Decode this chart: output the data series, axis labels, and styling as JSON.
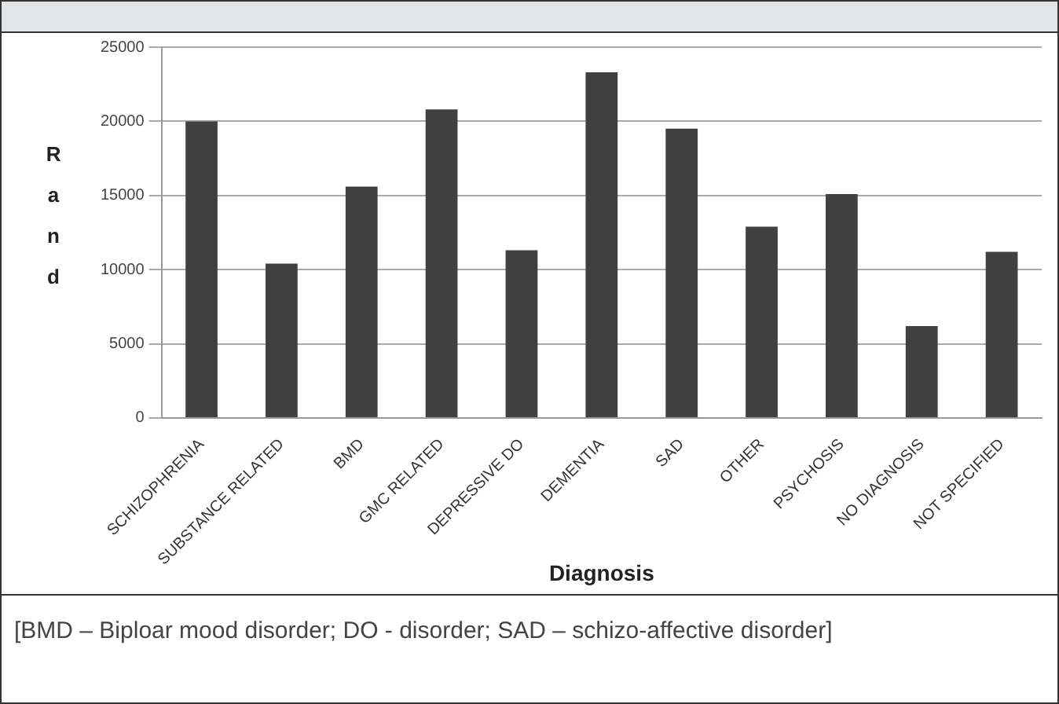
{
  "chart_data": {
    "type": "bar",
    "xlabel": "Diagnosis",
    "ylabel": "Rand",
    "categories": [
      "SCHIZOPHRENIA",
      "SUBSTANCE RELATED",
      "BMD",
      "GMC RELATED",
      "DEPRESSIVE DO",
      "DEMENTIA",
      "SAD",
      "OTHER",
      "PSYCHOSIS",
      "NO DIAGNOSIS",
      "NOT SPECIFIED"
    ],
    "values": [
      20000,
      10400,
      15600,
      20800,
      11300,
      23300,
      19500,
      12900,
      15100,
      6200,
      11200
    ],
    "color": "#404040",
    "ylim": [
      0,
      25000
    ],
    "yticks": [
      0,
      5000,
      10000,
      15000,
      20000,
      25000
    ],
    "grid": "y",
    "legend": false,
    "annotations": [
      "[BMD – Biploar mood disorder; DO - disorder; SAD – schizo-affective disorder]"
    ]
  }
}
